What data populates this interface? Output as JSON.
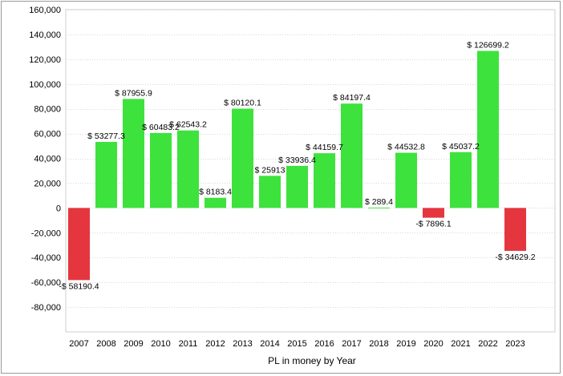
{
  "chart_data": {
    "type": "bar",
    "title": "",
    "xlabel": "PL in money by Year",
    "ylabel": "",
    "ylim": [
      -100000,
      160000
    ],
    "yticks": [
      160000,
      140000,
      120000,
      100000,
      80000,
      60000,
      40000,
      20000,
      0,
      -20000,
      -40000,
      -60000,
      -80000
    ],
    "ytick_labels": [
      "160,000",
      "140,000",
      "120,000",
      "100,000",
      "80,000",
      "60,000",
      "40,000",
      "20,000",
      "0",
      "-20,000",
      "-40,000",
      "-60,000",
      "-80,000"
    ],
    "grid": true,
    "positive_color": "#3de23d",
    "negative_color": "#e5363f",
    "categories": [
      "2007",
      "2008",
      "2009",
      "2010",
      "2011",
      "2012",
      "2013",
      "2014",
      "2015",
      "2016",
      "2017",
      "2018",
      "2019",
      "2020",
      "2021",
      "2022",
      "2023"
    ],
    "values": [
      -58190.4,
      53277.3,
      87955.9,
      60483.2,
      62543.2,
      8183.4,
      80120.1,
      25913,
      33936.4,
      44159.7,
      84197.4,
      289.4,
      44532.8,
      -7896.1,
      45037.2,
      126699.2,
      -34629.2
    ],
    "data_labels": [
      "-$ 58190.4",
      "$ 53277.3",
      "$ 87955.9",
      "$ 60483.2",
      "$ 62543.2",
      "$ 8183.4",
      "$ 80120.1",
      "$ 25913",
      "$ 33936.4",
      "$ 44159.7",
      "$ 84197.4",
      "$ 289.4",
      "$ 44532.8",
      "-$ 7896.1",
      "$ 45037.2",
      "$ 126699.2",
      "-$ 34629.2"
    ]
  }
}
